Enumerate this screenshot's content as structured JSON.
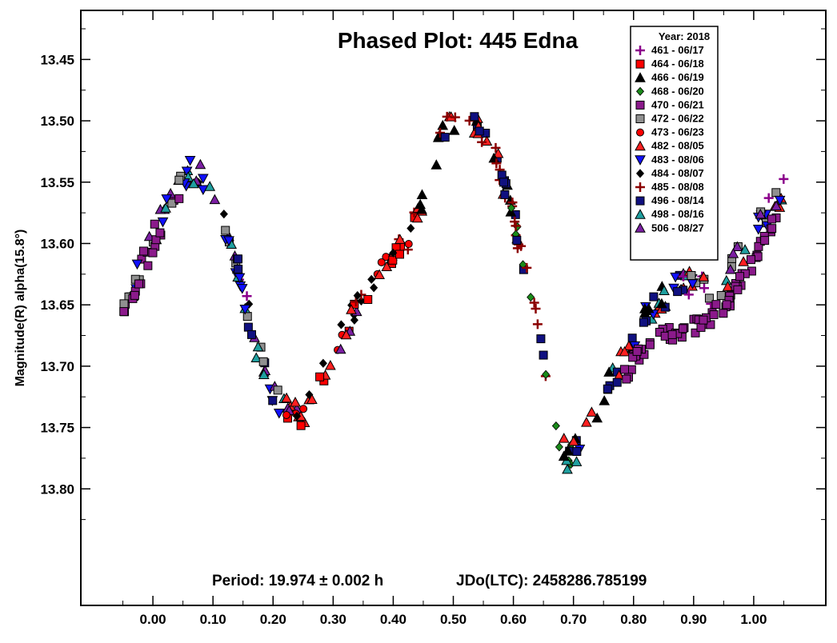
{
  "chart_data": {
    "type": "scatter",
    "title": "Phased Plot: 445 Edna",
    "xlabel": "",
    "ylabel": "Magnitude(R) alpha(15.8°)",
    "xlim": [
      -0.12,
      1.12
    ],
    "ylim": [
      13.41,
      13.895
    ],
    "y_inverted": true,
    "grid": false,
    "x_ticks": [
      {
        "value": 0.0,
        "label": "0.00"
      },
      {
        "value": 0.1,
        "label": "0.10"
      },
      {
        "value": 0.2,
        "label": "0.20"
      },
      {
        "value": 0.3,
        "label": "0.30"
      },
      {
        "value": 0.4,
        "label": "0.40"
      },
      {
        "value": 0.5,
        "label": "0.50"
      },
      {
        "value": 0.6,
        "label": "0.60"
      },
      {
        "value": 0.7,
        "label": "0.70"
      },
      {
        "value": 0.8,
        "label": "0.80"
      },
      {
        "value": 0.9,
        "label": "0.90"
      },
      {
        "value": 1.0,
        "label": "1.00"
      }
    ],
    "y_ticks": [
      {
        "value": 13.45,
        "label": "13.45"
      },
      {
        "value": 13.5,
        "label": "13.50"
      },
      {
        "value": 13.55,
        "label": "13.55"
      },
      {
        "value": 13.6,
        "label": "13.60"
      },
      {
        "value": 13.65,
        "label": "13.65"
      },
      {
        "value": 13.7,
        "label": "13.70"
      },
      {
        "value": 13.75,
        "label": "13.75"
      },
      {
        "value": 13.8,
        "label": "13.80"
      }
    ],
    "legend": {
      "position": "top-right",
      "title": "Year: 2018",
      "entries": [
        {
          "label": "461 - 06/17",
          "marker": "plus",
          "color": "#8b008b"
        },
        {
          "label": "464 - 06/18",
          "marker": "square",
          "color": "#ff0000"
        },
        {
          "label": "466 - 06/19",
          "marker": "triangle-up",
          "color": "#000000"
        },
        {
          "label": "468 - 06/20",
          "marker": "diamond",
          "color": "#1a8a1a"
        },
        {
          "label": "470 - 06/21",
          "marker": "square",
          "color": "#8b1a8b"
        },
        {
          "label": "472 - 06/22",
          "marker": "square",
          "color": "#909090"
        },
        {
          "label": "473 - 06/23",
          "marker": "circle",
          "color": "#ff0000"
        },
        {
          "label": "482 - 08/05",
          "marker": "triangle-up",
          "color": "#ff2020"
        },
        {
          "label": "483 - 08/06",
          "marker": "triangle-down",
          "color": "#1010ff"
        },
        {
          "label": "484 - 08/07",
          "marker": "diamond",
          "color": "#000000"
        },
        {
          "label": "485 - 08/08",
          "marker": "plus",
          "color": "#8b0000"
        },
        {
          "label": "496 - 08/14",
          "marker": "square",
          "color": "#101080"
        },
        {
          "label": "498 - 08/16",
          "marker": "triangle-up",
          "color": "#20a0a0"
        },
        {
          "label": "506 - 08/27",
          "marker": "triangle-up",
          "color": "#7b1fa2"
        }
      ]
    },
    "annotation": {
      "period": "Period: 19.974 ± 0.002 h",
      "epoch": "JDo(LTC): 2458286.785199"
    },
    "curve_x": [
      -0.05,
      -0.03,
      -0.01,
      0.01,
      0.03,
      0.05,
      0.07,
      0.09,
      0.11,
      0.13,
      0.15,
      0.17,
      0.19,
      0.21,
      0.23,
      0.25,
      0.27,
      0.3,
      0.33,
      0.36,
      0.39,
      0.42,
      0.45,
      0.47,
      0.49,
      0.51,
      0.53,
      0.55,
      0.57,
      0.59,
      0.61,
      0.63,
      0.65,
      0.67,
      0.69,
      0.71,
      0.73,
      0.75,
      0.77,
      0.79,
      0.81,
      0.83,
      0.85,
      0.87,
      0.89,
      0.91,
      0.93,
      0.95,
      0.97,
      0.99,
      1.01,
      1.03,
      1.05
    ],
    "curve_y": [
      13.65,
      13.63,
      13.61,
      13.585,
      13.565,
      13.548,
      13.54,
      13.548,
      13.57,
      13.6,
      13.64,
      13.68,
      13.71,
      13.73,
      13.74,
      13.738,
      13.722,
      13.69,
      13.66,
      13.635,
      13.615,
      13.6,
      13.56,
      13.53,
      13.505,
      13.495,
      13.497,
      13.51,
      13.53,
      13.56,
      13.6,
      13.64,
      13.7,
      13.75,
      13.778,
      13.765,
      13.745,
      13.725,
      13.705,
      13.688,
      13.67,
      13.655,
      13.643,
      13.636,
      13.633,
      13.635,
      13.64,
      13.63,
      13.615,
      13.6,
      13.585,
      13.57,
      13.555
    ],
    "curve_470_x": [
      0.78,
      0.8,
      0.82,
      0.84,
      0.86,
      0.88,
      0.9,
      0.92,
      0.94,
      0.96,
      0.98,
      1.0,
      1.02,
      1.04
    ],
    "curve_470_y": [
      13.712,
      13.695,
      13.682,
      13.677,
      13.673,
      13.67,
      13.667,
      13.665,
      13.655,
      13.648,
      13.63,
      13.615,
      13.595,
      13.575
    ]
  }
}
